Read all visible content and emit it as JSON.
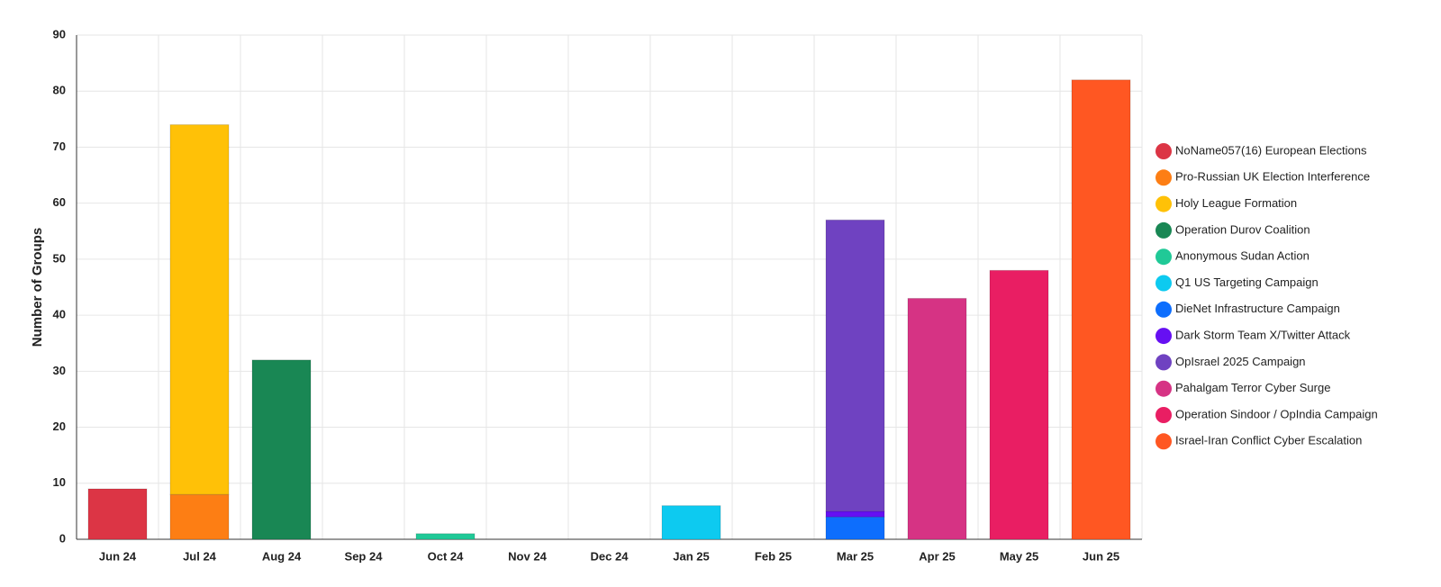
{
  "chart_data": {
    "type": "stacked-bar",
    "y_label": "Number of Groups",
    "categories": [
      "Jun 24",
      "Jul 24",
      "Aug 24",
      "Sep 24",
      "Oct 24",
      "Nov 24",
      "Dec 24",
      "Jan 25",
      "Feb 25",
      "Mar 25",
      "Apr 25",
      "May 25",
      "Jun 25"
    ],
    "series": [
      {
        "name": "NoName057(16) European Elections",
        "color": "#dc3545",
        "values": [
          9,
          null,
          null,
          null,
          null,
          null,
          null,
          null,
          null,
          null,
          null,
          null,
          null
        ]
      },
      {
        "name": "Pro-Russian UK Election Interference",
        "color": "#fd7e14",
        "values": [
          null,
          8,
          null,
          null,
          null,
          null,
          null,
          null,
          null,
          null,
          null,
          null,
          null
        ]
      },
      {
        "name": "Holy League Formation",
        "color": "#ffc107",
        "values": [
          null,
          66,
          null,
          null,
          null,
          null,
          null,
          null,
          null,
          null,
          null,
          null,
          null
        ]
      },
      {
        "name": "Operation Durov Coalition",
        "color": "#198754",
        "values": [
          null,
          null,
          32,
          null,
          null,
          null,
          null,
          null,
          null,
          null,
          null,
          null,
          null
        ]
      },
      {
        "name": "Anonymous Sudan Action",
        "color": "#20c997",
        "values": [
          null,
          null,
          null,
          null,
          1,
          null,
          null,
          null,
          null,
          null,
          null,
          null,
          null
        ]
      },
      {
        "name": "Q1 US Targeting Campaign",
        "color": "#0dcaf0",
        "values": [
          null,
          null,
          null,
          null,
          null,
          null,
          null,
          6,
          null,
          null,
          null,
          null,
          null
        ]
      },
      {
        "name": "DieNet Infrastructure Campaign",
        "color": "#0d6efd",
        "values": [
          null,
          null,
          null,
          null,
          null,
          null,
          null,
          null,
          null,
          4,
          null,
          null,
          null
        ]
      },
      {
        "name": "Dark Storm Team X/Twitter Attack",
        "color": "#6610f2",
        "values": [
          null,
          null,
          null,
          null,
          null,
          null,
          null,
          null,
          null,
          1,
          null,
          null,
          null
        ]
      },
      {
        "name": "OpIsrael 2025 Campaign",
        "color": "#6f42c1",
        "values": [
          null,
          null,
          null,
          null,
          null,
          null,
          null,
          null,
          null,
          52,
          null,
          null,
          null
        ]
      },
      {
        "name": "Pahalgam Terror Cyber Surge",
        "color": "#d63384",
        "values": [
          null,
          null,
          null,
          null,
          null,
          null,
          null,
          null,
          null,
          null,
          43,
          null,
          null
        ]
      },
      {
        "name": "Operation Sindoor / OpIndia Campaign",
        "color": "#e91e63",
        "values": [
          null,
          null,
          null,
          null,
          null,
          null,
          null,
          null,
          null,
          null,
          null,
          48,
          null
        ]
      },
      {
        "name": "Israel-Iran Conflict Cyber Escalation",
        "color": "#ff5722",
        "values": [
          null,
          null,
          null,
          null,
          null,
          null,
          null,
          null,
          null,
          null,
          null,
          null,
          82
        ]
      }
    ],
    "ylim": [
      0,
      90
    ],
    "yticks": [
      0,
      10,
      20,
      30,
      40,
      50,
      60,
      70,
      80,
      90
    ],
    "grid": true
  }
}
